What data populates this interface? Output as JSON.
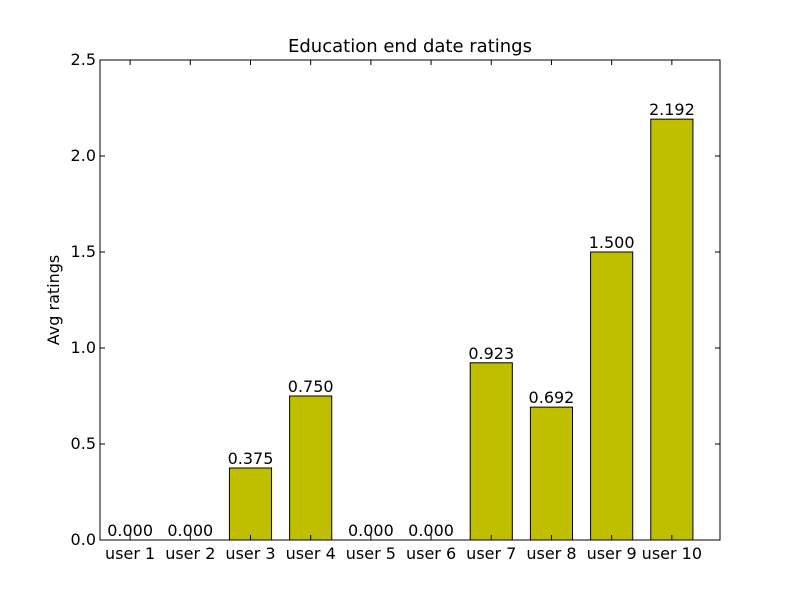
{
  "chart_data": {
    "type": "bar",
    "title": "Education end date ratings",
    "xlabel": "",
    "ylabel": "Avg ratings",
    "categories": [
      "user 1",
      "user 2",
      "user 3",
      "user 4",
      "user 5",
      "user 6",
      "user 7",
      "user 8",
      "user 9",
      "user 10"
    ],
    "values": [
      0.0,
      0.0,
      0.375,
      0.75,
      0.0,
      0.0,
      0.923,
      0.692,
      1.5,
      2.192
    ],
    "value_labels": [
      "0.000",
      "0.000",
      "0.375",
      "0.750",
      "0.000",
      "0.000",
      "0.923",
      "0.692",
      "1.500",
      "2.192"
    ],
    "ylim": [
      0,
      2.5
    ],
    "yticks": [
      0.0,
      0.5,
      1.0,
      1.5,
      2.0,
      2.5
    ],
    "ytick_labels": [
      "0.0",
      "0.5",
      "1.0",
      "1.5",
      "2.0",
      "2.5"
    ],
    "bar_color": "#bfbf00",
    "grid": false
  }
}
